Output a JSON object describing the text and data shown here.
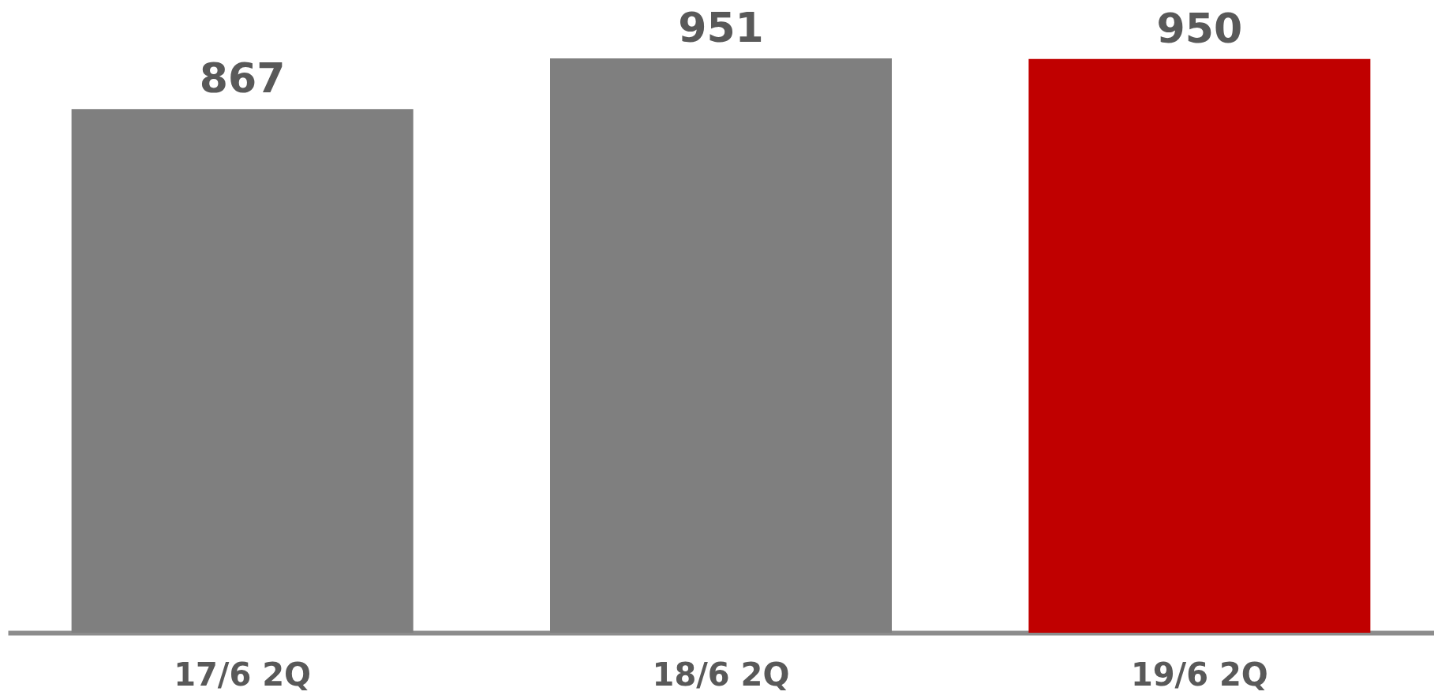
{
  "chart_data": {
    "type": "bar",
    "categories": [
      "17/6  2Q",
      "18/6  2Q",
      "19/6 2Q"
    ],
    "values": [
      867,
      951,
      950
    ],
    "colors": [
      "#7f7f7f",
      "#7f7f7f",
      "#c00000"
    ],
    "data_labels": true
  }
}
